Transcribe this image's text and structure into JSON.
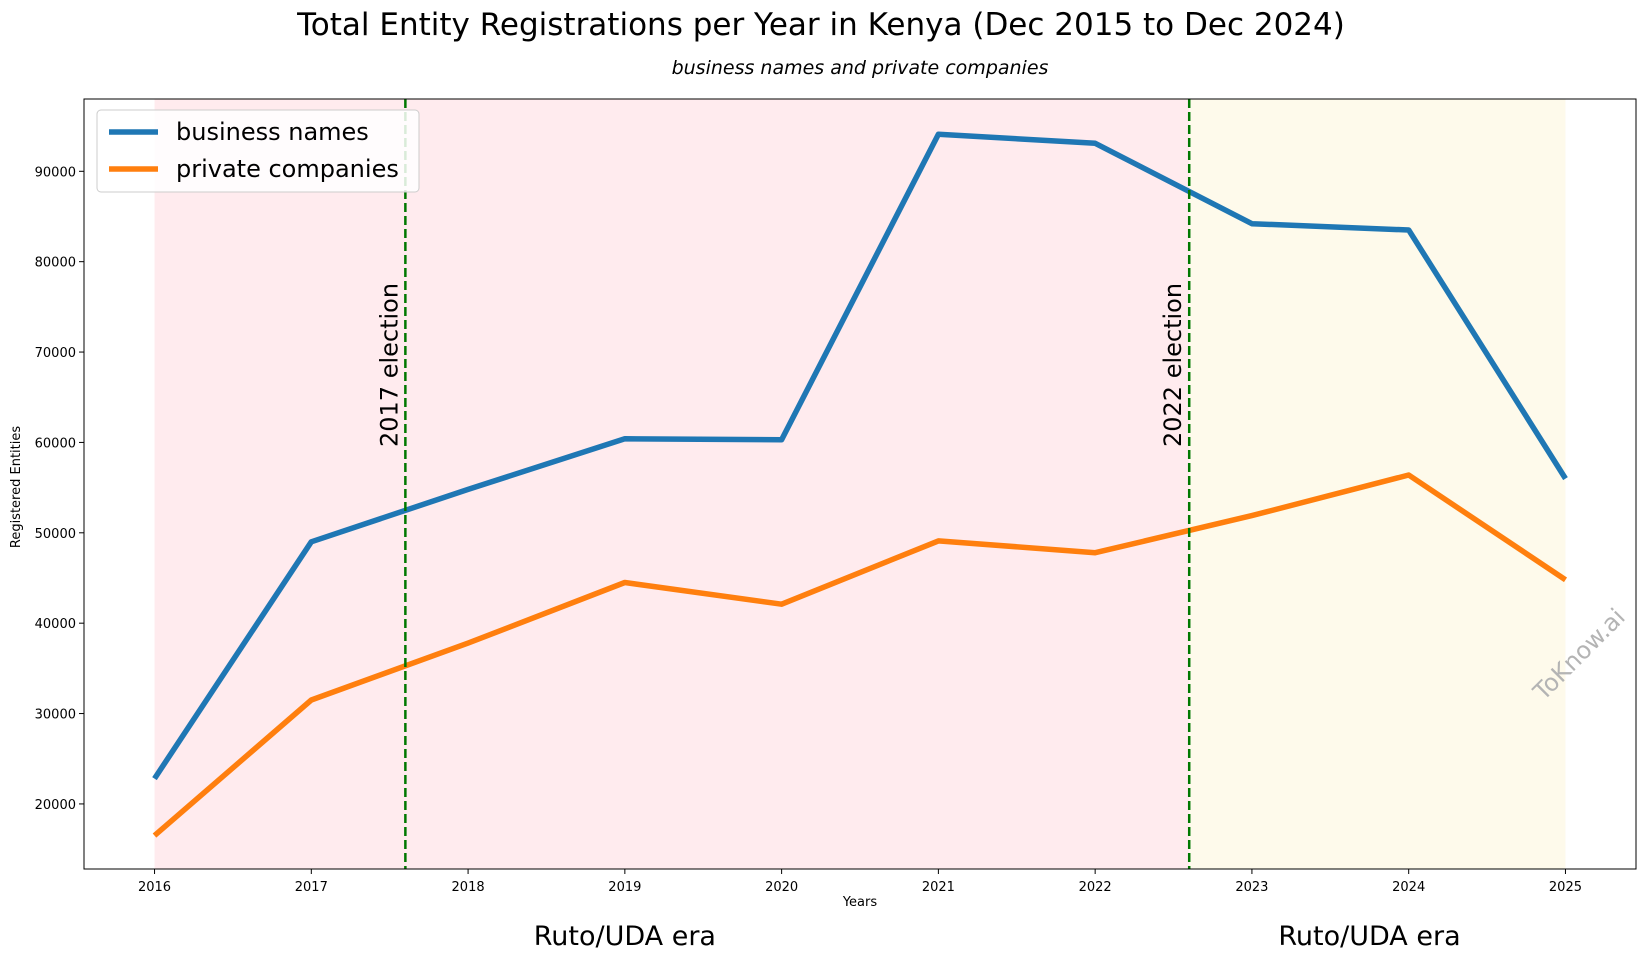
{
  "chart_data": {
    "type": "line",
    "title": "Total Entity Registrations per Year in Kenya (Dec 2015 to Dec 2024)",
    "subtitle": "business names and private companies",
    "xlabel": "Years",
    "ylabel": "Registered Entities",
    "x": [
      2016,
      2017,
      2018,
      2019,
      2020,
      2021,
      2022,
      2023,
      2024,
      2025
    ],
    "xlim": [
      2015.55,
      2025.45
    ],
    "ylim": [
      12800,
      98000
    ],
    "xticks": [
      "2016",
      "2017",
      "2018",
      "2019",
      "2020",
      "2021",
      "2022",
      "2023",
      "2024",
      "2025"
    ],
    "yticks": [
      "20000",
      "30000",
      "40000",
      "50000",
      "60000",
      "70000",
      "80000",
      "90000"
    ],
    "grid": false,
    "legend_position": "top-left",
    "series": [
      {
        "name": "business names",
        "color": "#1f77b4",
        "values": [
          22800,
          49000,
          54800,
          60400,
          60300,
          94100,
          93100,
          84200,
          83500,
          56000
        ]
      },
      {
        "name": "private companies",
        "color": "#ff7f0e",
        "values": [
          16500,
          31500,
          37800,
          44500,
          42100,
          49100,
          47800,
          51900,
          56400,
          44800
        ]
      }
    ],
    "shaded_regions": [
      {
        "from": 2016,
        "to": 2022.6,
        "color": "#ffebee"
      },
      {
        "from": 2022.6,
        "to": 2025,
        "color": "#fefaeb"
      }
    ],
    "event_lines": [
      {
        "x": 2017.6,
        "label": "2017 election",
        "color": "#007800"
      },
      {
        "x": 2022.6,
        "label": "2022 election",
        "color": "#007800"
      }
    ],
    "era_labels": [
      {
        "x": 2019.0,
        "text": "Ruto/UDA era"
      },
      {
        "x": 2023.75,
        "text": "Ruto/UDA era"
      }
    ],
    "watermark": "ToKnow.ai"
  }
}
